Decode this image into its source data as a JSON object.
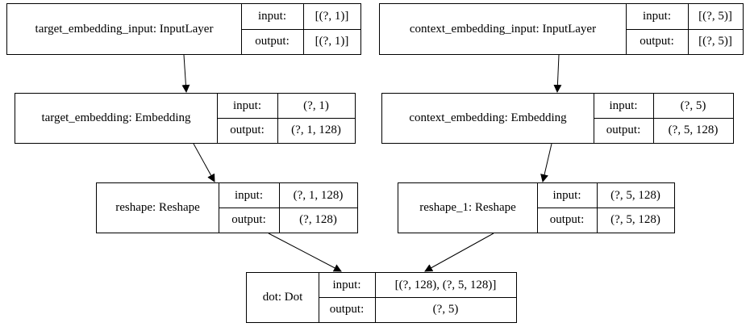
{
  "nodes": {
    "target_input": {
      "name": "target_embedding_input: InputLayer",
      "input_label": "input:",
      "input_value": "[(?, 1)]",
      "output_label": "output:",
      "output_value": "[(?, 1)]"
    },
    "context_input": {
      "name": "context_embedding_input: InputLayer",
      "input_label": "input:",
      "input_value": "[(?, 5)]",
      "output_label": "output:",
      "output_value": "[(?, 5)]"
    },
    "target_embedding": {
      "name": "target_embedding: Embedding",
      "input_label": "input:",
      "input_value": "(?, 1)",
      "output_label": "output:",
      "output_value": "(?, 1, 128)"
    },
    "context_embedding": {
      "name": "context_embedding: Embedding",
      "input_label": "input:",
      "input_value": "(?, 5)",
      "output_label": "output:",
      "output_value": "(?, 5, 128)"
    },
    "reshape": {
      "name": "reshape: Reshape",
      "input_label": "input:",
      "input_value": "(?, 1, 128)",
      "output_label": "output:",
      "output_value": "(?, 128)"
    },
    "reshape_1": {
      "name": "reshape_1: Reshape",
      "input_label": "input:",
      "input_value": "(?, 5, 128)",
      "output_label": "output:",
      "output_value": "(?, 5, 128)"
    },
    "dot": {
      "name": "dot: Dot",
      "input_label": "input:",
      "input_value": "[(?, 128), (?, 5, 128)]",
      "output_label": "output:",
      "output_value": "(?, 5)"
    }
  },
  "edges": [
    {
      "from": "target_input",
      "to": "target_embedding"
    },
    {
      "from": "context_input",
      "to": "context_embedding"
    },
    {
      "from": "target_embedding",
      "to": "reshape"
    },
    {
      "from": "context_embedding",
      "to": "reshape_1"
    },
    {
      "from": "reshape",
      "to": "dot"
    },
    {
      "from": "reshape_1",
      "to": "dot"
    }
  ]
}
